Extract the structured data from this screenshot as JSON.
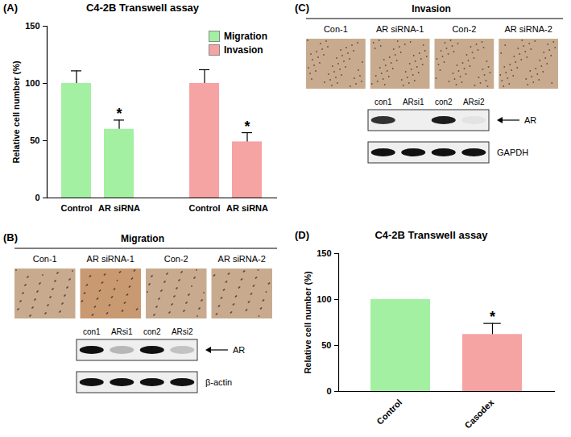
{
  "chart_data": [
    {
      "type": "bar",
      "panel_label": "(A)",
      "title": "C4-2B Transwell assay",
      "y_label": "Relative cell number (%)",
      "categories": [
        "Control",
        "AR siRNA",
        null,
        "Control",
        "AR siRNA"
      ],
      "series": [
        {
          "name": "Migration",
          "color": "#a3f0a3",
          "values": [
            100,
            60,
            null,
            null,
            null
          ],
          "errors": [
            11,
            8,
            null,
            null,
            null
          ],
          "significance": [
            null,
            "*",
            null,
            null,
            null
          ]
        },
        {
          "name": "Invasion",
          "color": "#f5a3a3",
          "values": [
            null,
            null,
            null,
            100,
            49
          ],
          "errors": [
            null,
            null,
            null,
            12,
            8
          ],
          "significance": [
            null,
            null,
            null,
            null,
            "*"
          ]
        }
      ],
      "ylim": [
        0,
        150
      ],
      "yticks": [
        0,
        50,
        100,
        150
      ],
      "legend": "upper right"
    },
    {
      "type": "bar",
      "panel_label": "(D)",
      "title": "C4-2B Transwell assay",
      "y_label": "Relative cell number (%)",
      "categories": [
        "Control",
        "Casodex"
      ],
      "values": [
        100,
        62
      ],
      "colors": [
        "#a3f0a3",
        "#f5a3a3"
      ],
      "errors": [
        null,
        12
      ],
      "significance": [
        null,
        "*"
      ],
      "ylim": [
        0,
        150
      ],
      "yticks": [
        0,
        50,
        100,
        150
      ]
    }
  ],
  "panels": [
    {
      "panel_label": "(B)",
      "title": "Migration",
      "image_labels": [
        "Con-1",
        "AR siRNA-1",
        "Con-2",
        "AR siRNA-2"
      ],
      "lanes": [
        "con1",
        "ARsi1",
        "con2",
        "ARsi2"
      ],
      "blots": [
        {
          "label": "AR",
          "arrow": true,
          "intensity": [
            1,
            0.25,
            1,
            0.2
          ]
        },
        {
          "label": "β-actin",
          "intensity": [
            1,
            1,
            1,
            1
          ]
        }
      ]
    },
    {
      "panel_label": "(C)",
      "title": "Invasion",
      "image_labels": [
        "Con-1",
        "AR siRNA-1",
        "Con-2",
        "AR siRNA-2"
      ],
      "lanes": [
        "con1",
        "ARsi1",
        "con2",
        "ARsi2"
      ],
      "blots": [
        {
          "label": "AR",
          "arrow": true,
          "intensity": [
            0.85,
            0,
            0.95,
            0.05
          ]
        },
        {
          "label": "GAPDH",
          "intensity": [
            1,
            1,
            1,
            1
          ]
        }
      ]
    }
  ]
}
